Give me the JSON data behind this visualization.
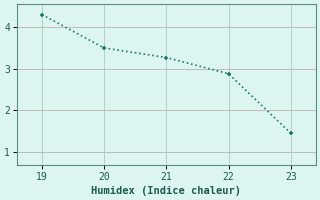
{
  "x": [
    19,
    20,
    21,
    22,
    23
  ],
  "y": [
    4.3,
    3.5,
    3.27,
    2.88,
    1.45
  ],
  "line_color": "#1a7a6e",
  "marker": "P",
  "marker_size": 3.5,
  "background_color": "#ddf5f0",
  "grid_color": "#b8ccc8",
  "grid_color_h2": "#d0b8b8",
  "xlabel": "Humidex (Indice chaleur)",
  "xlabel_fontsize": 7.5,
  "xlim": [
    18.6,
    23.4
  ],
  "ylim": [
    0.7,
    4.55
  ],
  "xticks": [
    19,
    20,
    21,
    22,
    23
  ],
  "yticks": [
    1,
    2,
    3,
    4
  ],
  "tick_fontsize": 7,
  "line_width": 1.2
}
